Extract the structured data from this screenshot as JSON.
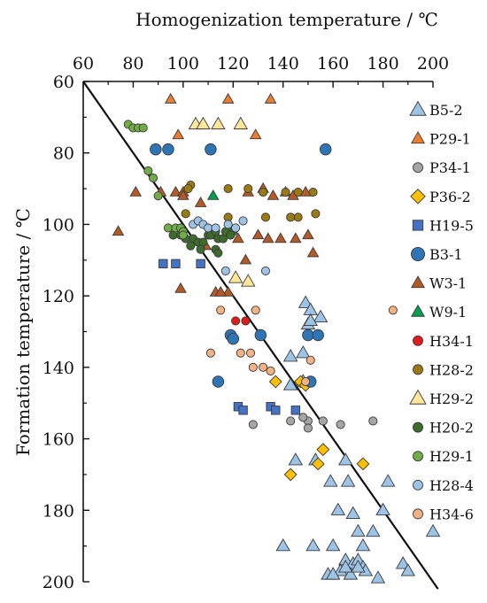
{
  "chart_data": {
    "type": "scatter",
    "xlabel": "Homogenization temperature / ℃",
    "ylabel": "Formation temperature / ℃",
    "x_ticks": [
      60,
      80,
      100,
      120,
      140,
      160,
      180,
      200
    ],
    "y_ticks": [
      60,
      80,
      100,
      120,
      140,
      160,
      180,
      200
    ],
    "xlim": [
      60,
      200
    ],
    "ylim": [
      60,
      200
    ],
    "y_inverted": true,
    "x_axis_position": "top",
    "legend_position": "right",
    "trend_line": {
      "x": [
        60,
        202
      ],
      "y": [
        60,
        202
      ]
    },
    "series": [
      {
        "name": "B5-2",
        "marker": "triangle",
        "color": "#9dc3e6",
        "points": [
          [
            149,
            122
          ],
          [
            151,
            124
          ],
          [
            150,
            128
          ],
          [
            155,
            126
          ],
          [
            148,
            136
          ],
          [
            143,
            137
          ],
          [
            148,
            144
          ],
          [
            143,
            145
          ],
          [
            151,
            127
          ],
          [
            145,
            166
          ],
          [
            153,
            166
          ],
          [
            165,
            166
          ],
          [
            159,
            172
          ],
          [
            166,
            172
          ],
          [
            182,
            172
          ],
          [
            162,
            180
          ],
          [
            180,
            180
          ],
          [
            168,
            181
          ],
          [
            152,
            190
          ],
          [
            170,
            186
          ],
          [
            176,
            186
          ],
          [
            200,
            186
          ],
          [
            160,
            190
          ],
          [
            172,
            190
          ],
          [
            188,
            195
          ],
          [
            190,
            197
          ],
          [
            165,
            194
          ],
          [
            168,
            195
          ],
          [
            170,
            194
          ],
          [
            172,
            196
          ],
          [
            163,
            197
          ],
          [
            158,
            198
          ],
          [
            160,
            198
          ],
          [
            167,
            198
          ],
          [
            173,
            197
          ],
          [
            178,
            199
          ],
          [
            165,
            196
          ],
          [
            170,
            196
          ],
          [
            140,
            190
          ]
        ]
      },
      {
        "name": "P29-1",
        "marker": "triangle",
        "color": "#ed7d31",
        "points": [
          [
            95,
            65
          ],
          [
            118,
            65
          ],
          [
            135,
            65
          ],
          [
            98,
            75
          ],
          [
            129,
            75
          ]
        ]
      },
      {
        "name": "P34-1",
        "marker": "circle",
        "color": "#a6a6a6",
        "points": [
          [
            143,
            155
          ],
          [
            150,
            155
          ],
          [
            156,
            155
          ],
          [
            150,
            157
          ],
          [
            163,
            156
          ],
          [
            128,
            156
          ],
          [
            176,
            155
          ],
          [
            148,
            154
          ]
        ]
      },
      {
        "name": "P36-2",
        "marker": "diamond",
        "color": "#ffc000",
        "points": [
          [
            137,
            144
          ],
          [
            147,
            144
          ],
          [
            149,
            145
          ],
          [
            156,
            163
          ],
          [
            154,
            167
          ],
          [
            143,
            170
          ],
          [
            172,
            167
          ]
        ]
      },
      {
        "name": "H19-5",
        "marker": "square",
        "color": "#4472c4",
        "points": [
          [
            92,
            111
          ],
          [
            97,
            111
          ],
          [
            107,
            111
          ],
          [
            122,
            151
          ],
          [
            124,
            152
          ],
          [
            135,
            151
          ],
          [
            137,
            152
          ],
          [
            145,
            152
          ]
        ]
      },
      {
        "name": "B3-1",
        "marker": "circle",
        "color": "#2e75b6",
        "points": [
          [
            89,
            79
          ],
          [
            94,
            79
          ],
          [
            111,
            79
          ],
          [
            157,
            79
          ],
          [
            119,
            131
          ],
          [
            120,
            132
          ],
          [
            131,
            131
          ],
          [
            150,
            131
          ],
          [
            154,
            131
          ],
          [
            151,
            144
          ],
          [
            114,
            144
          ]
        ]
      },
      {
        "name": "W3-1",
        "marker": "triangle",
        "color": "#b35a27",
        "points": [
          [
            74,
            102
          ],
          [
            81,
            91
          ],
          [
            91,
            91
          ],
          [
            97,
            91
          ],
          [
            100,
            91
          ],
          [
            100,
            92
          ],
          [
            107,
            94
          ],
          [
            126,
            91
          ],
          [
            132,
            90
          ],
          [
            136,
            92
          ],
          [
            141,
            91
          ],
          [
            144,
            92
          ],
          [
            149,
            91
          ],
          [
            150,
            103
          ],
          [
            152,
            108
          ],
          [
            122,
            104
          ],
          [
            130,
            103
          ],
          [
            134,
            104
          ],
          [
            139,
            104
          ],
          [
            145,
            104
          ],
          [
            113,
            103
          ],
          [
            109,
            106
          ],
          [
            125,
            110
          ],
          [
            99,
            118
          ],
          [
            113,
            119
          ],
          [
            118,
            119
          ],
          [
            115,
            119
          ]
        ]
      },
      {
        "name": "W9-1",
        "marker": "triangle",
        "color": "#00a050",
        "points": [
          [
            112,
            92
          ]
        ]
      },
      {
        "name": "H34-1",
        "marker": "circle",
        "color": "#e11b1b",
        "points": [
          [
            121,
            127
          ],
          [
            125,
            127
          ]
        ]
      },
      {
        "name": "H28-2",
        "marker": "circle",
        "color": "#9c7a12",
        "points": [
          [
            103,
            89
          ],
          [
            102,
            90
          ],
          [
            118,
            90
          ],
          [
            126,
            90
          ],
          [
            132,
            91
          ],
          [
            141,
            91
          ],
          [
            146,
            91
          ],
          [
            152,
            91
          ],
          [
            153,
            97
          ],
          [
            146,
            98
          ],
          [
            143,
            98
          ],
          [
            133,
            98
          ],
          [
            118,
            98
          ],
          [
            101,
            97
          ]
        ]
      },
      {
        "name": "H29-2",
        "marker": "triangle",
        "color": "#ffe699",
        "points": [
          [
            105,
            72
          ],
          [
            108,
            72
          ],
          [
            114,
            72
          ],
          [
            123,
            72
          ],
          [
            121,
            115
          ],
          [
            126,
            116
          ]
        ]
      },
      {
        "name": "H20-2",
        "marker": "circle",
        "color": "#3d6b2b",
        "points": [
          [
            96,
            103
          ],
          [
            99,
            103
          ],
          [
            101,
            104
          ],
          [
            104,
            104
          ],
          [
            106,
            105
          ],
          [
            108,
            105
          ],
          [
            110,
            103
          ],
          [
            111,
            103
          ],
          [
            114,
            104
          ],
          [
            116,
            104
          ],
          [
            117,
            102
          ],
          [
            120,
            102
          ],
          [
            103,
            106
          ],
          [
            107,
            107
          ],
          [
            113,
            107
          ],
          [
            114,
            108
          ],
          [
            119,
            103
          ],
          [
            113,
            102
          ]
        ]
      },
      {
        "name": "H29-1",
        "marker": "circle",
        "color": "#70ad47",
        "points": [
          [
            78,
            72
          ],
          [
            80,
            73
          ],
          [
            82,
            73
          ],
          [
            84,
            73
          ],
          [
            86,
            85
          ],
          [
            88,
            87
          ],
          [
            90,
            92
          ],
          [
            94,
            101
          ],
          [
            97,
            101
          ],
          [
            99,
            101
          ],
          [
            100,
            102
          ],
          [
            100,
            103
          ]
        ]
      },
      {
        "name": "H28-4",
        "marker": "circle",
        "color": "#9dc3e6",
        "points": [
          [
            104,
            100
          ],
          [
            106,
            99
          ],
          [
            108,
            100
          ],
          [
            110,
            101
          ],
          [
            113,
            101
          ],
          [
            118,
            100
          ],
          [
            121,
            101
          ],
          [
            124,
            99
          ],
          [
            117,
            113
          ],
          [
            133,
            113
          ]
        ]
      },
      {
        "name": "H34-6",
        "marker": "circle",
        "color": "#f4b183",
        "points": [
          [
            115,
            124
          ],
          [
            129,
            124
          ],
          [
            111,
            136
          ],
          [
            123,
            136
          ],
          [
            127,
            136
          ],
          [
            128,
            140
          ],
          [
            132,
            140
          ],
          [
            135,
            141
          ],
          [
            149,
            144
          ],
          [
            184,
            124
          ],
          [
            151,
            138
          ]
        ]
      }
    ]
  }
}
